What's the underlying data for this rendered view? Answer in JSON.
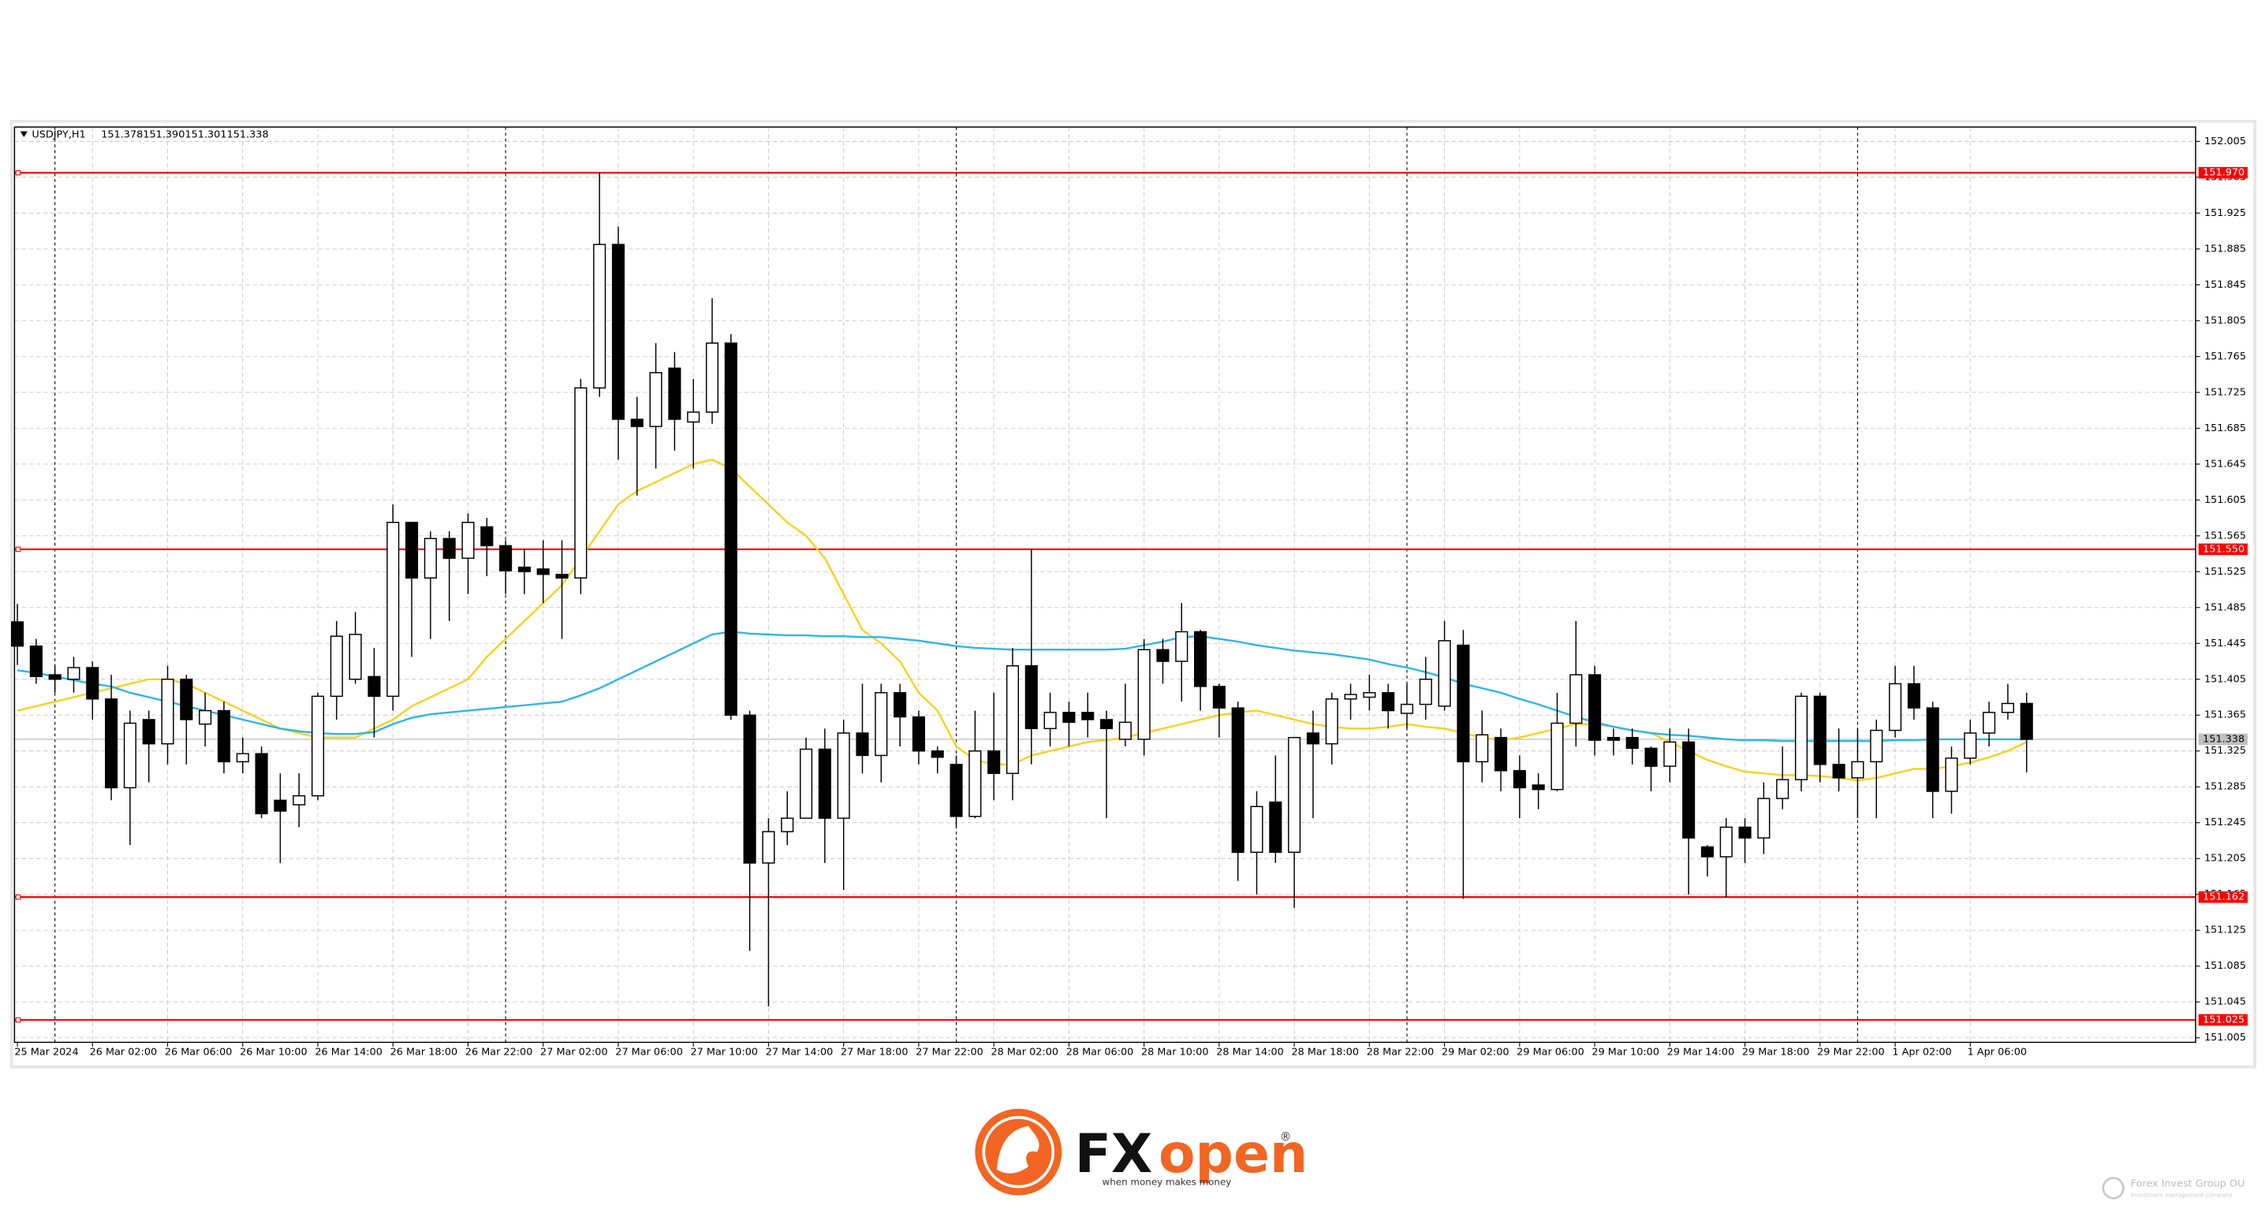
{
  "chart_data": {
    "type": "candlestick",
    "header": {
      "symbol": "USDJPY,H1",
      "ohlc_labels": [
        "151.378",
        "151.390",
        "151.301",
        "151.338"
      ]
    },
    "categories": [
      "25 Mar 2024",
      null,
      null,
      null,
      "26 Mar 02:00",
      null,
      null,
      null,
      "26 Mar 06:00",
      null,
      null,
      null,
      "26 Mar 10:00",
      null,
      null,
      null,
      "26 Mar 14:00",
      null,
      null,
      null,
      "26 Mar 18:00",
      null,
      null,
      null,
      "26 Mar 22:00",
      null,
      null,
      null,
      "27 Mar 02:00",
      null,
      null,
      null,
      "27 Mar 06:00",
      null,
      null,
      null,
      "27 Mar 10:00",
      null,
      null,
      null,
      "27 Mar 14:00",
      null,
      null,
      null,
      "27 Mar 18:00",
      null,
      null,
      null,
      "27 Mar 22:00",
      null,
      null,
      null,
      "28 Mar 02:00",
      null,
      null,
      null,
      "28 Mar 06:00",
      null,
      null,
      null,
      "28 Mar 10:00",
      null,
      null,
      null,
      "28 Mar 14:00",
      null,
      null,
      null,
      "28 Mar 18:00",
      null,
      null,
      null,
      "28 Mar 22:00",
      null,
      null,
      null,
      "29 Mar 02:00",
      null,
      null,
      null,
      "29 Mar 06:00",
      null,
      null,
      null,
      "29 Mar 10:00",
      null,
      null,
      null,
      "29 Mar 14:00",
      null,
      null,
      null,
      "29 Mar 18:00",
      null,
      null,
      null,
      "29 Mar 22:00",
      null,
      null,
      null,
      "1 Apr 02:00",
      null,
      null,
      null,
      "1 Apr 06:00",
      null,
      null,
      null
    ],
    "open": [
      151.469,
      151.442,
      151.41,
      151.405,
      151.418,
      151.383,
      151.284,
      151.36,
      151.333,
      151.405,
      151.355,
      151.37,
      151.313,
      151.322,
      151.27,
      151.265,
      151.275,
      151.386,
      151.405,
      151.408,
      151.386,
      151.58,
      151.518,
      151.562,
      151.54,
      151.575,
      151.554,
      151.53,
      151.528,
      151.522,
      151.518,
      151.73,
      151.89,
      151.695,
      151.687,
      151.752,
      151.692,
      151.703,
      151.78,
      151.365,
      151.2,
      151.235,
      151.25,
      151.327,
      151.25,
      151.345,
      151.32,
      151.39,
      151.363,
      151.325,
      151.31,
      151.252,
      151.325,
      151.3,
      151.42,
      151.35,
      151.368,
      151.368,
      151.36,
      151.338,
      151.338,
      151.438,
      151.425,
      151.458,
      151.397,
      151.373,
      151.212,
      151.268,
      151.212,
      151.345,
      151.333,
      151.383,
      151.385,
      151.39,
      151.367,
      151.377,
      151.375,
      151.443,
      151.313,
      151.34,
      151.303,
      151.287,
      151.282,
      151.356,
      151.41,
      151.34,
      151.34,
      151.328,
      151.308,
      151.335,
      151.218,
      151.207,
      151.24,
      151.228,
      151.272,
      151.293,
      151.386,
      151.31,
      151.295,
      151.313,
      151.348,
      151.4,
      151.373,
      151.28,
      151.317,
      151.345,
      151.368,
      151.378
    ],
    "high": [
      151.489,
      151.45,
      151.42,
      151.43,
      151.425,
      151.41,
      151.37,
      151.37,
      151.42,
      151.41,
      151.39,
      151.38,
      151.34,
      151.33,
      151.3,
      151.3,
      151.39,
      151.47,
      151.48,
      151.44,
      151.6,
      151.58,
      151.57,
      151.57,
      151.59,
      151.585,
      151.56,
      151.55,
      151.56,
      151.56,
      151.74,
      151.97,
      151.91,
      151.72,
      151.78,
      151.77,
      151.74,
      151.83,
      151.79,
      151.37,
      151.25,
      151.28,
      151.34,
      151.35,
      151.36,
      151.4,
      151.4,
      151.4,
      151.37,
      151.33,
      151.32,
      151.37,
      151.39,
      151.44,
      151.55,
      151.39,
      151.38,
      151.39,
      151.37,
      151.4,
      151.45,
      151.45,
      151.49,
      151.46,
      151.4,
      151.38,
      151.28,
      151.32,
      151.34,
      151.37,
      151.39,
      151.4,
      151.41,
      151.4,
      151.4,
      151.43,
      151.47,
      151.46,
      151.37,
      151.35,
      151.32,
      151.3,
      151.39,
      151.47,
      151.42,
      151.35,
      151.35,
      151.33,
      151.35,
      151.35,
      151.22,
      151.25,
      151.25,
      151.29,
      151.33,
      151.39,
      151.39,
      151.35,
      151.35,
      151.36,
      151.42,
      151.42,
      151.38,
      151.33,
      151.36,
      151.38,
      151.4,
      151.39
    ],
    "low": [
      151.421,
      151.4,
      151.39,
      151.39,
      151.36,
      151.27,
      151.22,
      151.29,
      151.31,
      151.31,
      151.33,
      151.3,
      151.3,
      151.25,
      151.2,
      151.24,
      151.27,
      151.36,
      151.4,
      151.34,
      151.37,
      151.43,
      151.45,
      151.47,
      151.5,
      151.52,
      151.5,
      151.5,
      151.49,
      151.45,
      151.5,
      151.72,
      151.65,
      151.61,
      151.64,
      151.66,
      151.64,
      151.69,
      151.36,
      151.102,
      151.04,
      151.22,
      151.25,
      151.2,
      151.17,
      151.3,
      151.29,
      151.33,
      151.31,
      151.3,
      151.24,
      151.25,
      151.27,
      151.27,
      151.31,
      151.33,
      151.33,
      151.34,
      151.25,
      151.33,
      151.32,
      151.4,
      151.38,
      151.37,
      151.34,
      151.18,
      151.165,
      151.2,
      151.15,
      151.25,
      151.31,
      151.36,
      151.37,
      151.35,
      151.35,
      151.36,
      151.37,
      151.16,
      151.29,
      151.28,
      151.25,
      151.26,
      151.28,
      151.33,
      151.32,
      151.32,
      151.31,
      151.28,
      151.29,
      151.165,
      151.185,
      151.162,
      151.2,
      151.21,
      151.26,
      151.28,
      151.29,
      151.28,
      151.25,
      151.25,
      151.34,
      151.36,
      151.25,
      151.255,
      151.31,
      151.33,
      151.36,
      151.301
    ],
    "close": [
      151.442,
      151.408,
      151.405,
      151.418,
      151.383,
      151.284,
      151.356,
      151.333,
      151.405,
      151.36,
      151.37,
      151.313,
      151.322,
      151.255,
      151.258,
      151.275,
      151.386,
      151.453,
      151.455,
      151.386,
      151.58,
      151.518,
      151.562,
      151.54,
      151.58,
      151.554,
      151.526,
      151.525,
      151.522,
      151.518,
      151.73,
      151.89,
      151.695,
      151.687,
      151.747,
      151.695,
      151.703,
      151.78,
      151.365,
      151.2,
      151.235,
      151.25,
      151.327,
      151.25,
      151.345,
      151.32,
      151.39,
      151.363,
      151.325,
      151.318,
      151.252,
      151.325,
      151.3,
      151.42,
      151.35,
      151.368,
      151.357,
      151.36,
      151.35,
      151.357,
      151.438,
      151.425,
      151.458,
      151.397,
      151.373,
      151.212,
      151.263,
      151.212,
      151.34,
      151.333,
      151.383,
      151.388,
      151.39,
      151.37,
      151.377,
      151.405,
      151.448,
      151.313,
      151.343,
      151.303,
      151.284,
      151.282,
      151.356,
      151.41,
      151.337,
      151.337,
      151.328,
      151.308,
      151.335,
      151.228,
      151.207,
      151.24,
      151.228,
      151.272,
      151.293,
      151.386,
      151.31,
      151.295,
      151.313,
      151.348,
      151.4,
      151.373,
      151.28,
      151.317,
      151.345,
      151.368,
      151.378,
      151.338
    ],
    "overlays": [
      {
        "color": "#f5d31b",
        "values": [
          151.37,
          151.375,
          151.38,
          151.385,
          151.39,
          151.395,
          151.4,
          151.405,
          151.405,
          151.4,
          151.39,
          151.38,
          151.37,
          151.36,
          151.35,
          151.345,
          151.34,
          151.34,
          151.34,
          151.35,
          151.36,
          151.375,
          151.385,
          151.395,
          151.405,
          151.43,
          151.45,
          151.47,
          151.49,
          151.51,
          151.54,
          151.57,
          151.6,
          151.615,
          151.625,
          151.635,
          151.645,
          151.65,
          151.64,
          151.62,
          151.6,
          151.58,
          151.565,
          151.54,
          151.5,
          151.46,
          151.445,
          151.425,
          151.39,
          151.37,
          151.33,
          151.315,
          151.31,
          151.31,
          151.32,
          151.325,
          151.33,
          151.335,
          151.337,
          151.34,
          151.345,
          151.35,
          151.355,
          151.36,
          151.365,
          151.368,
          151.37,
          151.365,
          151.36,
          151.355,
          151.352,
          151.35,
          151.35,
          151.352,
          151.355,
          151.352,
          151.35,
          151.345,
          151.34,
          151.337,
          151.34,
          151.345,
          151.35,
          151.355,
          151.355,
          151.352,
          151.348,
          151.345,
          151.335,
          151.325,
          151.315,
          151.308,
          151.302,
          151.3,
          151.298,
          151.298,
          151.297,
          151.295,
          151.292,
          151.295,
          151.3,
          151.305,
          151.305,
          151.308,
          151.312,
          151.318,
          151.325,
          151.335
        ]
      },
      {
        "color": "#2bb6ea",
        "values": [
          151.415,
          151.412,
          151.408,
          151.404,
          151.4,
          151.397,
          151.39,
          151.385,
          151.38,
          151.375,
          151.37,
          151.365,
          151.36,
          151.355,
          151.35,
          151.347,
          151.345,
          151.344,
          151.344,
          151.346,
          151.355,
          151.362,
          151.366,
          151.368,
          151.37,
          151.372,
          151.374,
          151.376,
          151.378,
          151.38,
          151.387,
          151.395,
          151.405,
          151.415,
          151.425,
          151.435,
          151.445,
          151.455,
          151.458,
          151.456,
          151.455,
          151.454,
          151.454,
          151.453,
          151.453,
          151.452,
          151.452,
          151.45,
          151.448,
          151.445,
          151.442,
          151.44,
          151.439,
          151.438,
          151.438,
          151.438,
          151.438,
          151.438,
          151.438,
          151.439,
          151.443,
          151.447,
          151.452,
          151.453,
          151.45,
          151.447,
          151.443,
          151.44,
          151.437,
          151.435,
          151.433,
          151.43,
          151.427,
          151.422,
          151.418,
          151.413,
          151.407,
          151.4,
          151.395,
          151.39,
          151.383,
          151.377,
          151.37,
          151.363,
          151.357,
          151.352,
          151.348,
          151.345,
          151.343,
          151.342,
          151.34,
          151.338,
          151.337,
          151.337,
          151.336,
          151.336,
          151.336,
          151.336,
          151.336,
          151.336,
          151.337,
          151.337,
          151.338,
          151.338,
          151.338,
          151.338,
          151.338,
          151.338
        ]
      }
    ],
    "levels": [
      {
        "value": 151.97,
        "label": "151.970"
      },
      {
        "value": 151.55,
        "label": "151.550"
      },
      {
        "value": 151.162,
        "label": "151.162"
      },
      {
        "value": 151.025,
        "label": "151.025"
      }
    ],
    "level_color": "#ff0000",
    "current_price": {
      "value": 151.338,
      "label": "151.338"
    },
    "ylim": [
      151.0,
      152.021
    ],
    "yticks": [
      151.005,
      151.045,
      151.085,
      151.125,
      151.165,
      151.205,
      151.245,
      151.285,
      151.325,
      151.365,
      151.405,
      151.445,
      151.485,
      151.525,
      151.565,
      151.605,
      151.645,
      151.685,
      151.725,
      151.765,
      151.805,
      151.845,
      151.885,
      151.925,
      151.965,
      152.005
    ],
    "grid": true,
    "up_color": "#ffffff",
    "down_color": "#000000"
  },
  "footer": {
    "brand_a": "FX",
    "brand_b": "open",
    "brand_mark": "®",
    "tagline": "when money makes money",
    "company": "Forex Invest Group OU",
    "company_sub": "Investment management company"
  }
}
